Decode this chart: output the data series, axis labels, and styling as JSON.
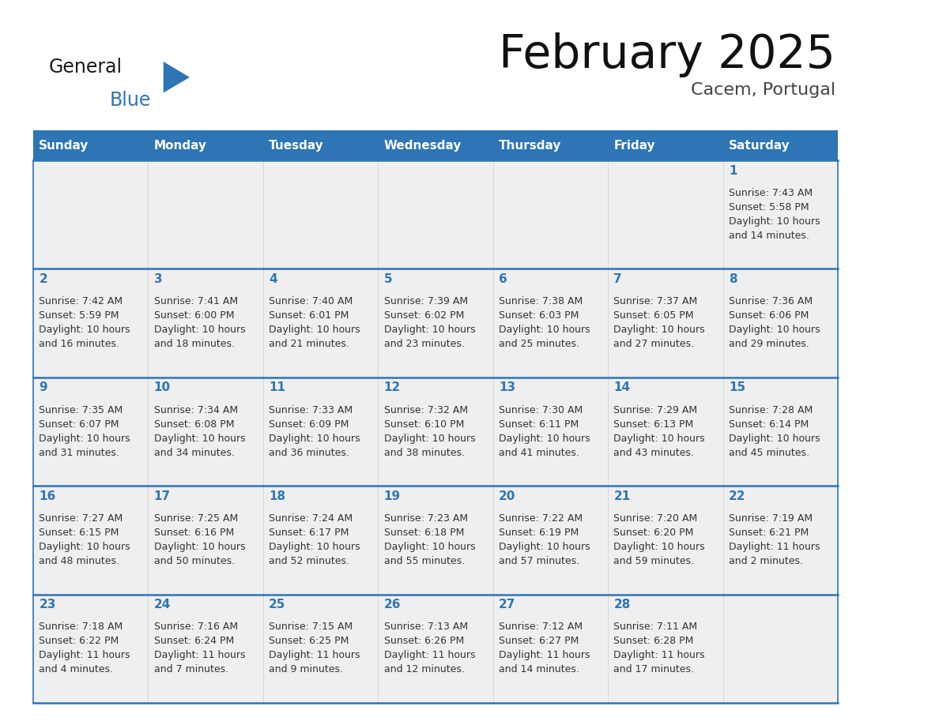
{
  "title": "February 2025",
  "subtitle": "Cacem, Portugal",
  "header_bg": "#2E75B6",
  "header_text_color": "#FFFFFF",
  "cell_bg_light": "#EFEFEF",
  "cell_bg_white": "#FFFFFF",
  "border_color": "#2E75B6",
  "text_color": "#333333",
  "day_num_color": "#2E75B6",
  "day_headers": [
    "Sunday",
    "Monday",
    "Tuesday",
    "Wednesday",
    "Thursday",
    "Friday",
    "Saturday"
  ],
  "weeks": [
    [
      {
        "day": "",
        "info": ""
      },
      {
        "day": "",
        "info": ""
      },
      {
        "day": "",
        "info": ""
      },
      {
        "day": "",
        "info": ""
      },
      {
        "day": "",
        "info": ""
      },
      {
        "day": "",
        "info": ""
      },
      {
        "day": "1",
        "info": "Sunrise: 7:43 AM\nSunset: 5:58 PM\nDaylight: 10 hours\nand 14 minutes."
      }
    ],
    [
      {
        "day": "2",
        "info": "Sunrise: 7:42 AM\nSunset: 5:59 PM\nDaylight: 10 hours\nand 16 minutes."
      },
      {
        "day": "3",
        "info": "Sunrise: 7:41 AM\nSunset: 6:00 PM\nDaylight: 10 hours\nand 18 minutes."
      },
      {
        "day": "4",
        "info": "Sunrise: 7:40 AM\nSunset: 6:01 PM\nDaylight: 10 hours\nand 21 minutes."
      },
      {
        "day": "5",
        "info": "Sunrise: 7:39 AM\nSunset: 6:02 PM\nDaylight: 10 hours\nand 23 minutes."
      },
      {
        "day": "6",
        "info": "Sunrise: 7:38 AM\nSunset: 6:03 PM\nDaylight: 10 hours\nand 25 minutes."
      },
      {
        "day": "7",
        "info": "Sunrise: 7:37 AM\nSunset: 6:05 PM\nDaylight: 10 hours\nand 27 minutes."
      },
      {
        "day": "8",
        "info": "Sunrise: 7:36 AM\nSunset: 6:06 PM\nDaylight: 10 hours\nand 29 minutes."
      }
    ],
    [
      {
        "day": "9",
        "info": "Sunrise: 7:35 AM\nSunset: 6:07 PM\nDaylight: 10 hours\nand 31 minutes."
      },
      {
        "day": "10",
        "info": "Sunrise: 7:34 AM\nSunset: 6:08 PM\nDaylight: 10 hours\nand 34 minutes."
      },
      {
        "day": "11",
        "info": "Sunrise: 7:33 AM\nSunset: 6:09 PM\nDaylight: 10 hours\nand 36 minutes."
      },
      {
        "day": "12",
        "info": "Sunrise: 7:32 AM\nSunset: 6:10 PM\nDaylight: 10 hours\nand 38 minutes."
      },
      {
        "day": "13",
        "info": "Sunrise: 7:30 AM\nSunset: 6:11 PM\nDaylight: 10 hours\nand 41 minutes."
      },
      {
        "day": "14",
        "info": "Sunrise: 7:29 AM\nSunset: 6:13 PM\nDaylight: 10 hours\nand 43 minutes."
      },
      {
        "day": "15",
        "info": "Sunrise: 7:28 AM\nSunset: 6:14 PM\nDaylight: 10 hours\nand 45 minutes."
      }
    ],
    [
      {
        "day": "16",
        "info": "Sunrise: 7:27 AM\nSunset: 6:15 PM\nDaylight: 10 hours\nand 48 minutes."
      },
      {
        "day": "17",
        "info": "Sunrise: 7:25 AM\nSunset: 6:16 PM\nDaylight: 10 hours\nand 50 minutes."
      },
      {
        "day": "18",
        "info": "Sunrise: 7:24 AM\nSunset: 6:17 PM\nDaylight: 10 hours\nand 52 minutes."
      },
      {
        "day": "19",
        "info": "Sunrise: 7:23 AM\nSunset: 6:18 PM\nDaylight: 10 hours\nand 55 minutes."
      },
      {
        "day": "20",
        "info": "Sunrise: 7:22 AM\nSunset: 6:19 PM\nDaylight: 10 hours\nand 57 minutes."
      },
      {
        "day": "21",
        "info": "Sunrise: 7:20 AM\nSunset: 6:20 PM\nDaylight: 10 hours\nand 59 minutes."
      },
      {
        "day": "22",
        "info": "Sunrise: 7:19 AM\nSunset: 6:21 PM\nDaylight: 11 hours\nand 2 minutes."
      }
    ],
    [
      {
        "day": "23",
        "info": "Sunrise: 7:18 AM\nSunset: 6:22 PM\nDaylight: 11 hours\nand 4 minutes."
      },
      {
        "day": "24",
        "info": "Sunrise: 7:16 AM\nSunset: 6:24 PM\nDaylight: 11 hours\nand 7 minutes."
      },
      {
        "day": "25",
        "info": "Sunrise: 7:15 AM\nSunset: 6:25 PM\nDaylight: 11 hours\nand 9 minutes."
      },
      {
        "day": "26",
        "info": "Sunrise: 7:13 AM\nSunset: 6:26 PM\nDaylight: 11 hours\nand 12 minutes."
      },
      {
        "day": "27",
        "info": "Sunrise: 7:12 AM\nSunset: 6:27 PM\nDaylight: 11 hours\nand 14 minutes."
      },
      {
        "day": "28",
        "info": "Sunrise: 7:11 AM\nSunset: 6:28 PM\nDaylight: 11 hours\nand 17 minutes."
      },
      {
        "day": "",
        "info": ""
      }
    ]
  ],
  "logo_general_color": "#1a1a1a",
  "logo_blue_color": "#2E75B6",
  "logo_triangle_color": "#2E75B6",
  "title_fontsize": 42,
  "subtitle_fontsize": 16,
  "header_fontsize": 11,
  "day_num_fontsize": 11,
  "info_fontsize": 9
}
